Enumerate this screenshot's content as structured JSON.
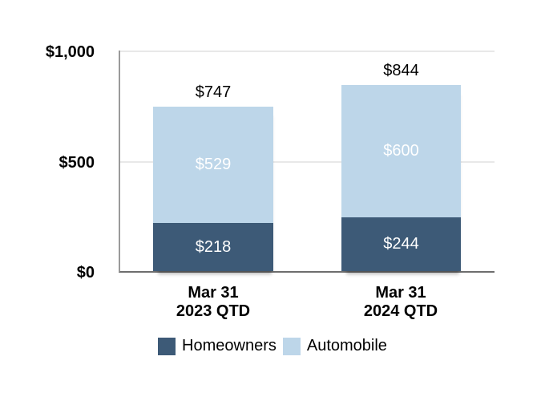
{
  "chart_data": {
    "type": "bar",
    "stacked": true,
    "title": "",
    "xlabel": "",
    "ylabel": "",
    "grid": "horizontal",
    "legend_position": "bottom",
    "ylim": [
      0,
      1000
    ],
    "yticks": [
      {
        "value": 0,
        "label": "$0"
      },
      {
        "value": 500,
        "label": "$500"
      },
      {
        "value": 1000,
        "label": "$1,000"
      }
    ],
    "categories": [
      {
        "line1": "Mar 31",
        "line2": "2023 QTD"
      },
      {
        "line1": "Mar 31",
        "line2": "2024 QTD"
      }
    ],
    "series": [
      {
        "name": "Homeowners",
        "color": "#3d5a77",
        "values": [
          218,
          244
        ],
        "labels": [
          "$218",
          "$244"
        ]
      },
      {
        "name": "Automobile",
        "color": "#bdd6e9",
        "values": [
          529,
          600
        ],
        "labels": [
          "$529",
          "$600"
        ]
      }
    ],
    "totals": [
      747,
      844
    ],
    "total_labels": [
      "$747",
      "$844"
    ],
    "value_label_color": "#ffffff",
    "gridline_color": "#e8e8e8",
    "axis_line_color": "#6e6e6e"
  },
  "legend": {
    "entries": [
      {
        "label": "Homeowners",
        "color": "#3d5a77"
      },
      {
        "label": "Automobile",
        "color": "#bdd6e9"
      }
    ]
  }
}
